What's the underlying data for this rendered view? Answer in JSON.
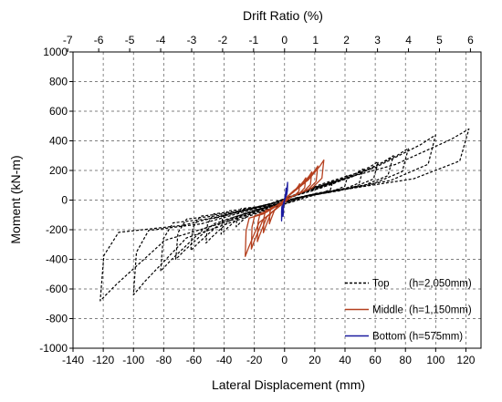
{
  "chart_data": {
    "type": "line",
    "top_axis_title": "Drift Ratio (%)",
    "xlabel": "Lateral Displacement (mm)",
    "ylabel": "Moment (kN-m)",
    "xlim": [
      -140,
      130
    ],
    "ylim": [
      -1000,
      1000
    ],
    "x_ticks": [
      -140,
      -120,
      -100,
      -80,
      -60,
      -40,
      -20,
      0,
      20,
      40,
      60,
      80,
      100,
      120
    ],
    "y_ticks": [
      -1000,
      -800,
      -600,
      -400,
      -200,
      0,
      200,
      400,
      600,
      800,
      1000
    ],
    "drift_ticks": [
      -7,
      -6,
      -5,
      -4,
      -3,
      -2,
      -1,
      0,
      1,
      2,
      3,
      4,
      5,
      6
    ],
    "grid": "dashed",
    "legend_position": "bottom-right",
    "series": [
      {
        "name": "Top",
        "label_suffix": "(h=2,050mm)",
        "color": "#000000",
        "style": "dashed",
        "cycles": [
          {
            "dmax": 32,
            "mmax": 130,
            "dmin": -32,
            "mmin": -180
          },
          {
            "dmax": 42,
            "mmax": 170,
            "dmin": -42,
            "mmin": -230
          },
          {
            "dmax": 52,
            "mmax": 210,
            "dmin": -52,
            "mmin": -290
          },
          {
            "dmax": 62,
            "mmax": 260,
            "dmin": -62,
            "mmin": -340
          },
          {
            "dmax": 72,
            "mmax": 300,
            "dmin": -72,
            "mmin": -400
          },
          {
            "dmax": 82,
            "mmax": 350,
            "dmin": -82,
            "mmin": -480
          },
          {
            "dmax": 100,
            "mmax": 440,
            "dmin": -100,
            "mmin": -640
          },
          {
            "dmax": 122,
            "mmax": 480,
            "dmin": -122,
            "mmin": -680
          }
        ]
      },
      {
        "name": "Middle",
        "label_suffix": "(h=1,150mm)",
        "color": "#b5401f",
        "style": "solid",
        "cycles": [
          {
            "dmax": 10,
            "mmax": 110,
            "dmin": -10,
            "mmin": -160
          },
          {
            "dmax": 14,
            "mmax": 150,
            "dmin": -14,
            "mmin": -220
          },
          {
            "dmax": 18,
            "mmax": 190,
            "dmin": -18,
            "mmin": -280
          },
          {
            "dmax": 22,
            "mmax": 230,
            "dmin": -22,
            "mmin": -330
          },
          {
            "dmax": 26,
            "mmax": 270,
            "dmin": -26,
            "mmin": -380
          }
        ]
      },
      {
        "name": "Bottom",
        "label_suffix": "(h=575mm)",
        "color": "#1a1aa0",
        "style": "solid",
        "cycles": [
          {
            "dmax": 1,
            "mmax": 80,
            "dmin": -1,
            "mmin": -110
          },
          {
            "dmax": 2,
            "mmax": 120,
            "dmin": -2,
            "mmin": -140
          }
        ]
      }
    ]
  }
}
